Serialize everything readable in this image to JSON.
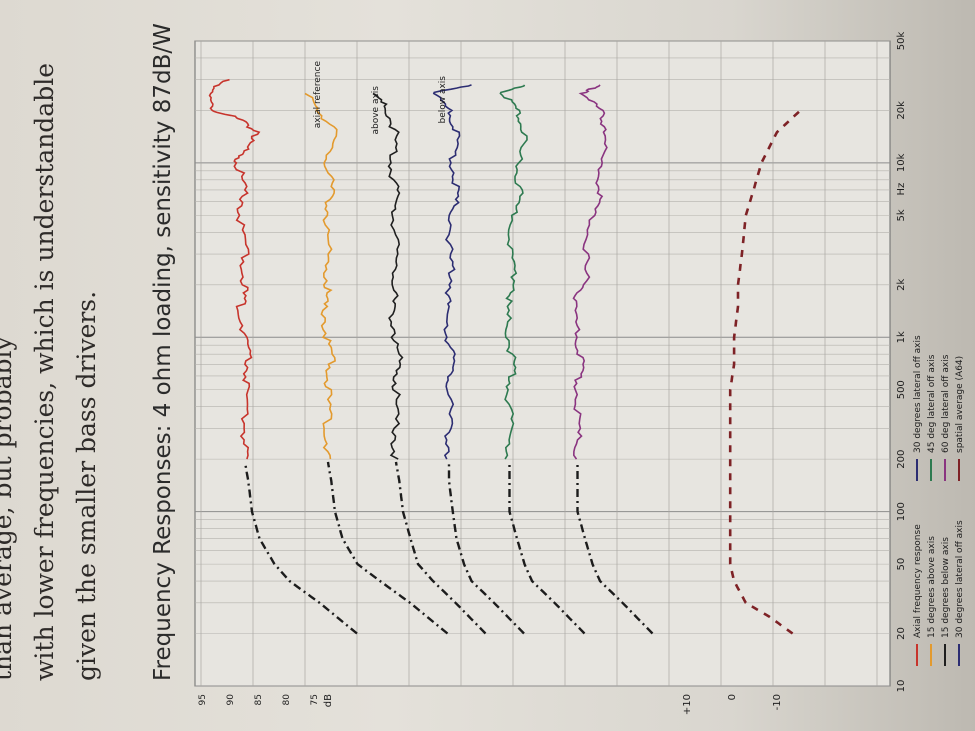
{
  "text": {
    "line1": "than average, but probably",
    "line2": "with lower frequencies, which is understandable",
    "line3": "given the smaller bass drivers."
  },
  "chart_data": {
    "type": "line",
    "title": "Frequency Responses: 4 ohm loading, sensitivity 87dB/W",
    "xlabel": "Hz",
    "ylabel": "dB",
    "xscale": "log",
    "xlim": [
      10,
      50000
    ],
    "x_ticks": [
      10,
      20,
      50,
      100,
      200,
      500,
      1000,
      2000,
      5000,
      10000,
      20000,
      50000
    ],
    "x_tick_labels": [
      "10",
      "20",
      "50",
      "100",
      "200",
      "500",
      "1k",
      "2k",
      "5k",
      "10k",
      "20k",
      "50k"
    ],
    "y_ticks_top": [
      "95",
      "90",
      "85",
      "80",
      "75"
    ],
    "y_ticks_bottom": [
      "+10",
      "0",
      "-10"
    ],
    "grid": true,
    "annotations": [
      "axial reference",
      "above axis",
      "below axis"
    ],
    "series": [
      {
        "name": "Axial frequency response",
        "color": "#c7342c",
        "row": 0,
        "x": [
          20,
          30,
          40,
          50,
          70,
          100,
          150,
          200,
          300,
          500,
          700,
          1000,
          1500,
          2000,
          3000,
          5000,
          7000,
          10000,
          12000,
          15000,
          18000,
          20000,
          25000,
          30000
        ],
        "y": [
          75,
          80,
          84,
          86,
          88,
          89,
          89.5,
          90,
          90,
          90,
          89.5,
          90,
          90.5,
          90,
          90,
          90.5,
          90,
          91,
          90,
          88,
          91,
          94,
          95,
          92
        ]
      },
      {
        "name": "15 degrees above axis",
        "color": "#e39a2e",
        "row": 1,
        "x": [
          20,
          30,
          40,
          50,
          70,
          100,
          150,
          200,
          300,
          500,
          700,
          1000,
          1500,
          2000,
          3000,
          5000,
          7000,
          10000,
          15000,
          20000,
          25000
        ],
        "y": [
          70,
          75,
          79,
          82,
          84,
          85,
          85.5,
          86,
          86,
          86,
          85.5,
          86,
          86.5,
          86,
          86,
          86,
          85.5,
          86,
          85,
          87,
          89
        ]
      },
      {
        "name": "15 degrees below axis",
        "color": "#1f1f1f",
        "row": 2,
        "x": [
          20,
          30,
          40,
          50,
          70,
          100,
          150,
          200,
          300,
          500,
          700,
          1000,
          1500,
          2000,
          3000,
          5000,
          7000,
          10000,
          15000,
          20000,
          25000
        ],
        "y": [
          72,
          76,
          79,
          81,
          82,
          83,
          83.5,
          84,
          84,
          84,
          83.5,
          84,
          84.5,
          84,
          84,
          84,
          84,
          84.5,
          84,
          85,
          87
        ]
      },
      {
        "name": "30 degrees lateral off axis",
        "color": "#2c2d72",
        "row": 3,
        "x": [
          20,
          30,
          40,
          50,
          70,
          100,
          150,
          200,
          300,
          500,
          700,
          1000,
          1500,
          2000,
          3000,
          5000,
          7000,
          10000,
          15000,
          20000,
          25000,
          28000
        ],
        "y": [
          75,
          79,
          82,
          83,
          84,
          84.5,
          85,
          85,
          85,
          85,
          84.5,
          85,
          85.5,
          84.5,
          85,
          84.5,
          84,
          84.5,
          84,
          85,
          87,
          82
        ]
      },
      {
        "name": "45 deg lateral off axis",
        "color": "#2e7a50",
        "row": 4,
        "x": [
          20,
          30,
          40,
          50,
          70,
          100,
          150,
          200,
          300,
          500,
          700,
          1000,
          1500,
          2000,
          3000,
          5000,
          7000,
          10000,
          15000,
          20000,
          25000,
          28000
        ],
        "y": [
          74,
          78,
          81,
          82,
          83,
          84,
          84,
          84,
          84,
          84,
          83.5,
          84,
          84.5,
          83,
          84,
          83.5,
          82.5,
          83,
          82,
          83,
          85,
          82
        ]
      },
      {
        "name": "60 deg lateral off axis",
        "color": "#8a3480",
        "row": 5,
        "x": [
          20,
          30,
          40,
          50,
          70,
          100,
          150,
          200,
          300,
          500,
          700,
          1000,
          1500,
          2000,
          3000,
          5000,
          7000,
          10000,
          15000,
          20000,
          25000,
          28000
        ],
        "y": [
          72,
          76,
          79,
          80,
          81,
          82,
          82,
          82,
          82,
          82,
          81.5,
          82,
          82.5,
          81,
          81,
          80,
          79,
          79,
          78,
          79,
          81,
          79
        ]
      },
      {
        "name": "spatial average (A64)",
        "color": "#7e2226",
        "row": 6,
        "style": "dashed",
        "x": [
          20,
          25,
          30,
          40,
          50,
          70,
          100,
          150,
          200,
          300,
          500,
          700,
          1000,
          1500,
          2000,
          3000,
          5000,
          7000,
          10000,
          15000,
          20000
        ],
        "y": [
          -7,
          -4,
          -1,
          0.5,
          1,
          1,
          1,
          1,
          1,
          1,
          1,
          0.5,
          0.5,
          0,
          0,
          -0.5,
          -1,
          -2,
          -3,
          -5,
          -8
        ]
      }
    ]
  }
}
